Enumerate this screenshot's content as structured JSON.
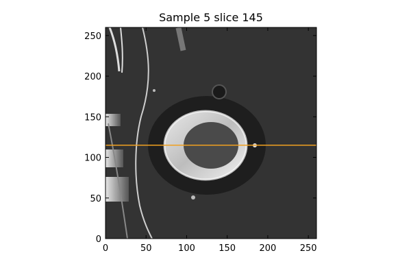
{
  "title": "Sample 5 slice 145",
  "axes": {
    "x_range": [
      0,
      260
    ],
    "y_range": [
      0,
      260
    ],
    "x_ticks": [
      0,
      50,
      100,
      150,
      200,
      250
    ],
    "y_ticks": [
      0,
      50,
      100,
      150,
      200,
      250
    ]
  },
  "image": {
    "kind": "grayscale CT slice",
    "background_color": "#333333"
  },
  "overlay_line": {
    "y_value": 115,
    "color": "#f0a020"
  }
}
